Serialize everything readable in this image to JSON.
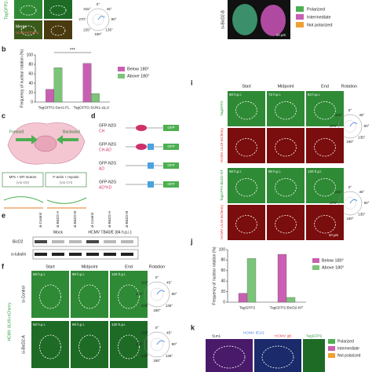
{
  "chart_data": [
    {
      "type": "bar",
      "panel": "b",
      "ylabel": "Frequency of nuclear rotation (%)",
      "categories": [
        "TagGFP2-Sun1-FL",
        "TagGFP2-SUN1-ΔLU"
      ],
      "series": [
        {
          "name": "Below 180°",
          "color": "#c95fb2",
          "values": [
            27,
            82
          ]
        },
        {
          "name": "Above 180°",
          "color": "#7cc47a",
          "values": [
            73,
            18
          ]
        }
      ],
      "ylim": [
        0,
        100
      ],
      "yticks": [
        0,
        20,
        40,
        60,
        80,
        100
      ],
      "annotation": "***"
    },
    {
      "type": "bar",
      "panel": "j",
      "ylabel": "Frequency of nuclear rotation (%)",
      "categories": [
        "TagGFP2",
        "TagGFP2-BicD2-NT"
      ],
      "series": [
        {
          "name": "Below 180°",
          "color": "#c95fb2",
          "values": [
            17,
            91
          ]
        },
        {
          "name": "Above 180°",
          "color": "#7cc47a",
          "values": [
            83,
            9
          ]
        }
      ],
      "ylim": [
        0,
        100
      ],
      "yticks": [
        0,
        20,
        40,
        60,
        80,
        100
      ]
    }
  ],
  "figure": {
    "top_left": {
      "row_label": "TagGFP2-SUN1-ΔLU",
      "merge": "Merge",
      "merge_sub": "UL49-mCherry"
    },
    "top_right": {
      "row_label": "si-BicD2-B",
      "scale": "10 μm"
    },
    "polarization_legend": [
      "Polarized",
      "Intermediate",
      "Not polarized"
    ],
    "polar_angles": [
      "0°",
      "45°",
      "90°",
      "135°",
      "180°",
      "225°",
      "270°",
      "315°"
    ],
    "c": {
      "letter": "c",
      "forward": "Forward",
      "backward": "Backward",
      "mt": "MTs + MT motors",
      "mt_sub": "(via KD)",
      "actin": "F-actin + myosin",
      "actin_sub": "(via CH)"
    },
    "d": {
      "letter": "d",
      "constructs": [
        {
          "name": "GFP-N2G",
          "domain": "CH"
        },
        {
          "name": "GFP-N2G",
          "domain": "CH-AD"
        },
        {
          "name": "GFP-N2G",
          "domain": "AD"
        },
        {
          "name": "GFP-N2G",
          "domain": "AD^KD"
        }
      ],
      "tag": "GFP"
    },
    "e": {
      "letter": "e",
      "lanes": [
        "si-Control",
        "si-BicD2-A",
        "si-BicD2-B",
        "si-Control",
        "si-BicD2-A",
        "si-BicD2-B"
      ],
      "groups": [
        "Mock",
        "HCMV TB40/E (84 h.p.i.)"
      ],
      "bands": [
        "BicD2",
        "α-tubulin"
      ]
    },
    "f": {
      "letter": "f",
      "columns": [
        "Start",
        "Midpoint",
        "End"
      ],
      "rotation": "Rotation",
      "rows": [
        "si-Control",
        "si-BicD2-A"
      ],
      "times": [
        "60 h.p.i.",
        "90 h.p.i.",
        "120 h.p.i."
      ],
      "side": "HCMV UL49-mCherry"
    },
    "i": {
      "letter": "i",
      "columns": [
        "Start",
        "Midpoint",
        "End"
      ],
      "rotation": "Rotation",
      "rows": [
        "TagGFP2",
        "HCMV UL49-mCherry",
        "TagGFP2-BicD2-NT",
        "HCMV UL49-mCherry"
      ],
      "times_top": [
        "60 h.p.i.",
        "72 h.p.i.",
        "84 h.p.i."
      ],
      "times_bottom": [
        "60 h.p.i.",
        "90 h.p.i.",
        "120 h.p.i."
      ],
      "scale": "10 μm"
    },
    "k": {
      "letter": "k",
      "labels": [
        "Sun1",
        "HCMV IE1/2",
        "HCMV gB",
        "TagGFP2"
      ]
    }
  }
}
